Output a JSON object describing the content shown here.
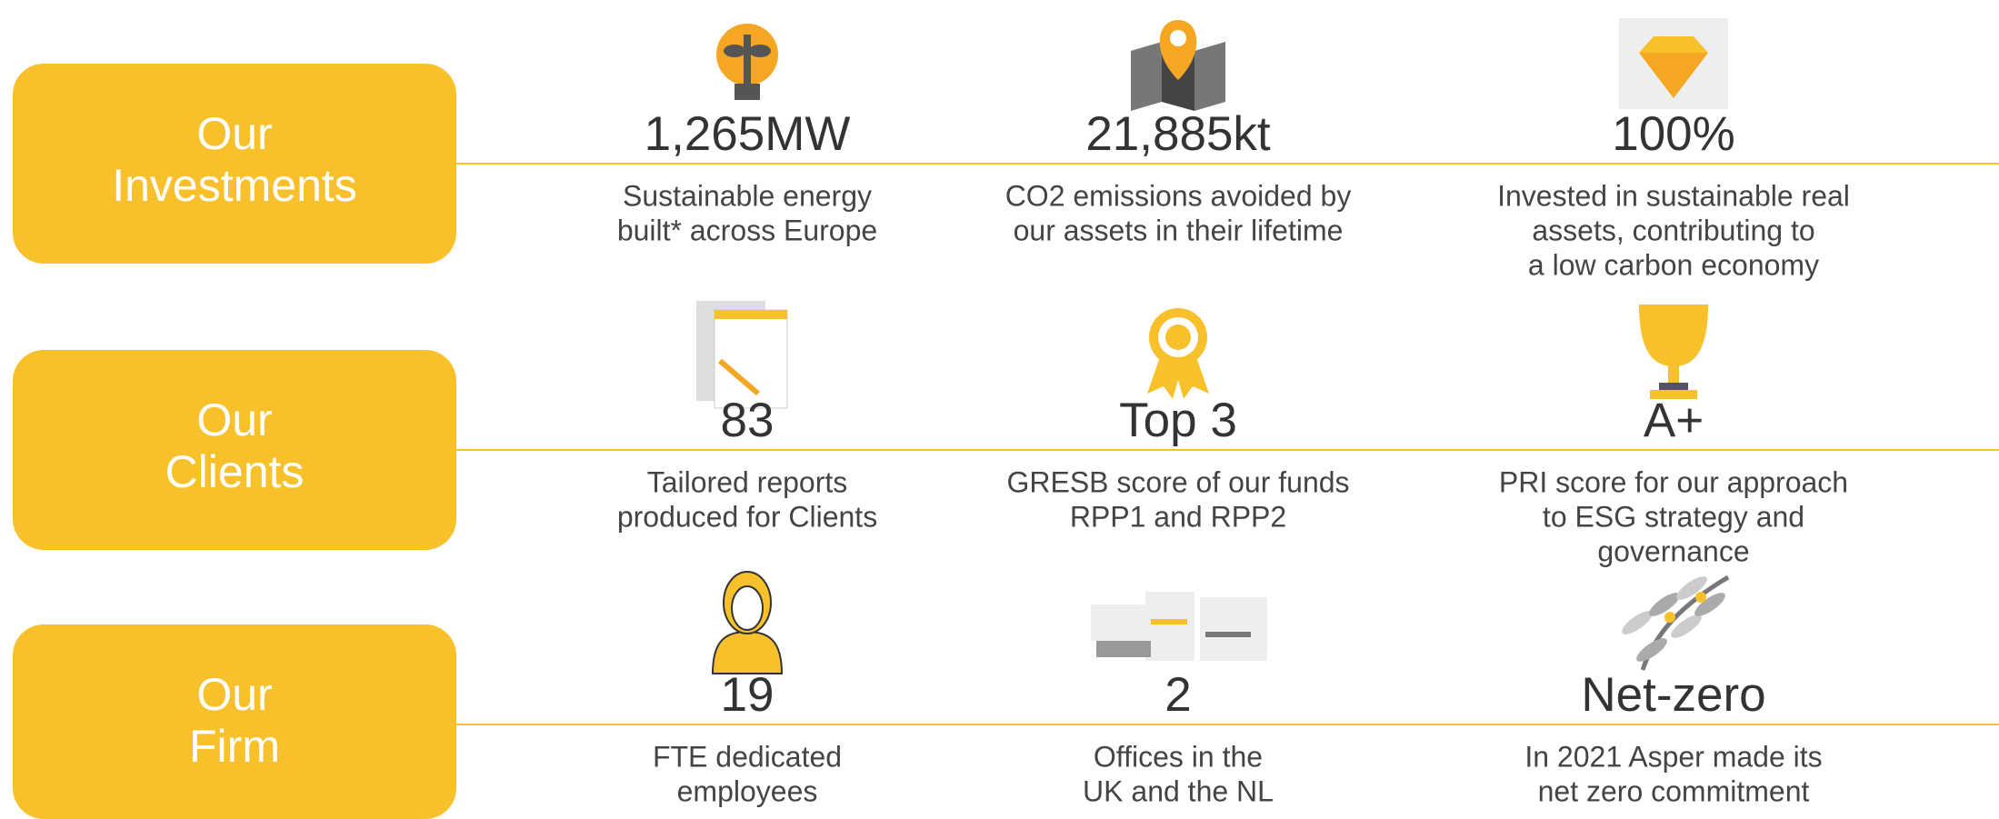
{
  "rows": [
    {
      "label": [
        "Our",
        "Investments"
      ],
      "items": [
        {
          "value": "1,265MW",
          "description": [
            "Sustainable energy",
            "built* across Europe"
          ]
        },
        {
          "value": "21,885kt",
          "description": [
            "CO2 emissions avoided by",
            "our assets in their lifetime"
          ]
        },
        {
          "value": "100%",
          "description": [
            "Invested in sustainable real",
            "assets, contributing to",
            "a low carbon economy"
          ]
        }
      ]
    },
    {
      "label": [
        "Our",
        "Clients"
      ],
      "items": [
        {
          "value": "83",
          "description": [
            "Tailored reports",
            "produced for Clients"
          ]
        },
        {
          "value": "Top 3",
          "description": [
            "GRESB score of our funds",
            "RPP1 and RPP2"
          ]
        },
        {
          "value": "A+",
          "description": [
            "PRI score for our approach",
            "to ESG strategy and",
            "governance"
          ]
        }
      ]
    },
    {
      "label": [
        "Our",
        "Firm"
      ],
      "items": [
        {
          "value": "19",
          "description": [
            "FTE dedicated",
            "employees"
          ]
        },
        {
          "value": "2",
          "description": [
            "Offices in the",
            "UK and the NL"
          ]
        },
        {
          "value": "Net-zero",
          "description": [
            "In 2021 Asper made its",
            "net zero commitment"
          ]
        }
      ]
    }
  ]
}
